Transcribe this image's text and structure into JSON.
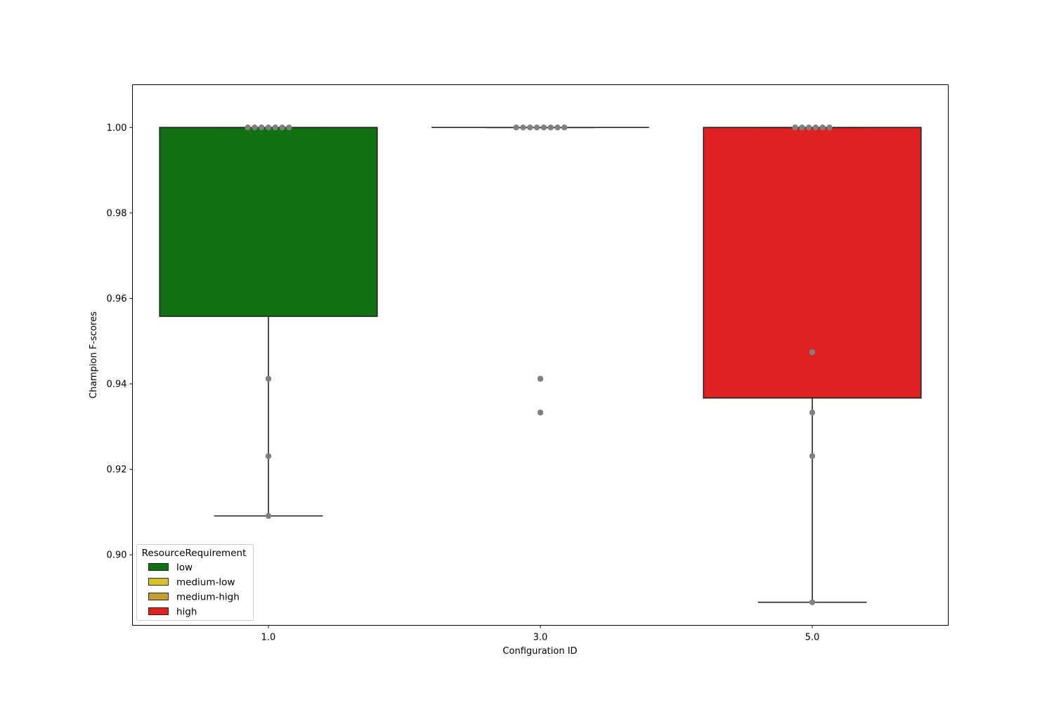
{
  "chart_data": {
    "type": "box",
    "title": "",
    "xlabel": "Configuration ID",
    "ylabel": "Champion F-scores",
    "ylim": [
      0.8835,
      1.01
    ],
    "yticks": [
      "0.90",
      "0.92",
      "0.94",
      "0.96",
      "0.98",
      "1.00"
    ],
    "ytick_values": [
      0.9,
      0.92,
      0.94,
      0.96,
      0.98,
      1.0
    ],
    "categories": [
      "1.0",
      "3.0",
      "5.0"
    ],
    "grid": false,
    "boxes": [
      {
        "category": "1.0",
        "group": "low",
        "color": "#117011",
        "q1": 0.9558,
        "median": 1.0,
        "q3": 1.0,
        "whisker_low": 0.9091,
        "whisker_high": 1.0,
        "points": [
          1.0,
          1.0,
          1.0,
          1.0,
          1.0,
          1.0,
          1.0,
          0.9412,
          0.9231,
          0.9091
        ]
      },
      {
        "category": "3.0",
        "group": "medium-low",
        "color": "#d8c12a",
        "q1": 1.0,
        "median": 1.0,
        "q3": 1.0,
        "whisker_low": 1.0,
        "whisker_high": 1.0,
        "points": [
          1.0,
          1.0,
          1.0,
          1.0,
          1.0,
          1.0,
          1.0,
          1.0,
          0.9412,
          0.9333
        ]
      },
      {
        "category": "5.0",
        "group": "high",
        "color": "#de2222",
        "q1": 0.9367,
        "median": 1.0,
        "q3": 1.0,
        "whisker_low": 0.8889,
        "whisker_high": 1.0,
        "points": [
          1.0,
          1.0,
          1.0,
          1.0,
          1.0,
          1.0,
          0.9474,
          0.9333,
          0.9231,
          0.8889
        ]
      }
    ],
    "point_color": "#808080",
    "legend": {
      "title": "ResourceRequirement",
      "placement": "lower-left",
      "items": [
        {
          "label": "low",
          "color": "#117011"
        },
        {
          "label": "medium-low",
          "color": "#d8c12a"
        },
        {
          "label": "medium-high",
          "color": "#c89d30"
        },
        {
          "label": "high",
          "color": "#de2222"
        }
      ]
    }
  }
}
